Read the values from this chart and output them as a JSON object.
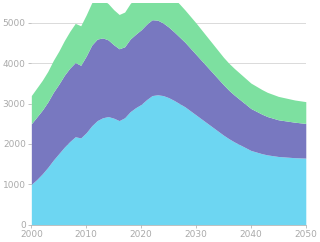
{
  "years": [
    2000,
    2001,
    2002,
    2003,
    2004,
    2005,
    2006,
    2007,
    2008,
    2009,
    2010,
    2011,
    2012,
    2013,
    2014,
    2015,
    2016,
    2017,
    2018,
    2019,
    2020,
    2021,
    2022,
    2023,
    2024,
    2025,
    2026,
    2027,
    2028,
    2029,
    2030,
    2031,
    2032,
    2033,
    2034,
    2035,
    2036,
    2037,
    2038,
    2039,
    2040,
    2041,
    2042,
    2043,
    2044,
    2045,
    2046,
    2047,
    2048,
    2049,
    2050
  ],
  "layer1_vals": [
    1000,
    1120,
    1260,
    1420,
    1600,
    1760,
    1920,
    2060,
    2180,
    2150,
    2280,
    2450,
    2580,
    2650,
    2680,
    2640,
    2580,
    2650,
    2800,
    2900,
    2980,
    3100,
    3200,
    3220,
    3200,
    3150,
    3080,
    3000,
    2920,
    2820,
    2720,
    2620,
    2520,
    2420,
    2320,
    2220,
    2130,
    2050,
    1980,
    1910,
    1840,
    1800,
    1760,
    1730,
    1710,
    1690,
    1680,
    1670,
    1660,
    1655,
    1650
  ],
  "layer2_vals": [
    1500,
    1550,
    1580,
    1620,
    1680,
    1720,
    1780,
    1820,
    1840,
    1800,
    1900,
    2000,
    2020,
    1980,
    1900,
    1820,
    1780,
    1760,
    1800,
    1820,
    1850,
    1870,
    1880,
    1850,
    1800,
    1750,
    1700,
    1650,
    1600,
    1550,
    1500,
    1450,
    1400,
    1350,
    1300,
    1250,
    1200,
    1160,
    1120,
    1080,
    1040,
    1010,
    980,
    950,
    930,
    910,
    900,
    890,
    880,
    870,
    860
  ],
  "layer3_vals": [
    700,
    720,
    740,
    760,
    790,
    820,
    860,
    910,
    970,
    980,
    1020,
    1050,
    1000,
    950,
    900,
    870,
    850,
    860,
    880,
    900,
    920,
    930,
    950,
    900,
    870,
    850,
    830,
    820,
    800,
    790,
    780,
    760,
    740,
    720,
    700,
    680,
    670,
    660,
    650,
    640,
    630,
    620,
    610,
    600,
    590,
    580,
    570,
    560,
    550,
    545,
    540
  ],
  "color1": "#6dd6f2",
  "color2": "#7878c0",
  "color3": "#7de0a0",
  "bg_color": "#ffffff",
  "grid_color": "#cccccc",
  "ylim": [
    0,
    5500
  ],
  "xlim": [
    2000,
    2050
  ],
  "yticks": [
    0,
    1000,
    2000,
    3000,
    4000,
    5000
  ],
  "xticks": [
    2000,
    2010,
    2020,
    2030,
    2040,
    2050
  ],
  "tick_fontsize": 6.5,
  "tick_color": "#aaaaaa",
  "label_color": "#aaaaaa"
}
